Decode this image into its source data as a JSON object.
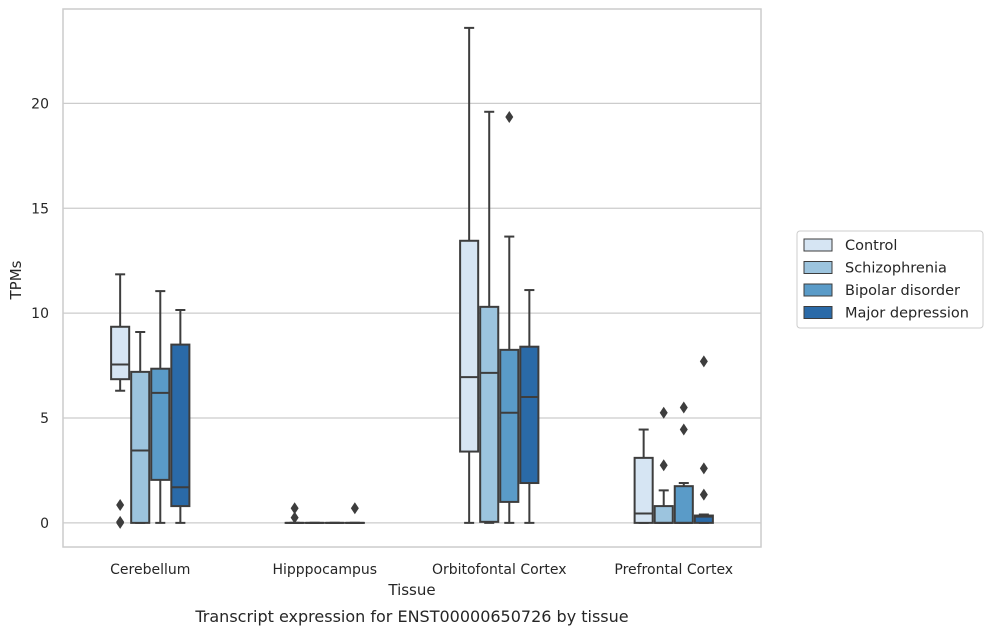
{
  "chart_data": {
    "type": "box",
    "xlabel": "Tissue",
    "ylabel": "TPMs",
    "caption": "Transcript expression for ENST00000650726 by tissue",
    "ylim": [
      -1.15,
      24.5
    ],
    "yticks": [
      0,
      5,
      10,
      15,
      20
    ],
    "grid": true,
    "legend_position": "right",
    "categories": [
      "Cerebellum",
      "Hipppocampus",
      "Orbitofontal Cortex",
      "Prefrontal Cortex"
    ],
    "series": [
      {
        "name": "Control",
        "color": "#d6e5f3",
        "boxes": [
          {
            "whislo": 6.3,
            "q1": 6.85,
            "med": 7.55,
            "q3": 9.35,
            "whishi": 11.85,
            "fliers": [
              0.85,
              0.05,
              0.0
            ]
          },
          {
            "whislo": 0,
            "q1": 0,
            "med": 0,
            "q3": 0,
            "whishi": 0,
            "fliers": [
              0.7,
              0.25
            ]
          },
          {
            "whislo": 0,
            "q1": 3.4,
            "med": 6.95,
            "q3": 13.45,
            "whishi": 23.6,
            "fliers": []
          },
          {
            "whislo": 0,
            "q1": 0,
            "med": 0.45,
            "q3": 3.1,
            "whishi": 4.45,
            "fliers": []
          }
        ]
      },
      {
        "name": "Schizophrenia",
        "color": "#9cc4de",
        "boxes": [
          {
            "whislo": 0,
            "q1": 0,
            "med": 3.45,
            "q3": 7.2,
            "whishi": 9.1,
            "fliers": []
          },
          {
            "whislo": 0,
            "q1": 0,
            "med": 0,
            "q3": 0,
            "whishi": 0,
            "fliers": []
          },
          {
            "whislo": 0,
            "q1": 0.05,
            "med": 7.15,
            "q3": 10.3,
            "whishi": 19.6,
            "fliers": []
          },
          {
            "whislo": 0,
            "q1": 0,
            "med": 0,
            "q3": 0.8,
            "whishi": 1.55,
            "fliers": [
              2.75,
              5.25
            ]
          }
        ]
      },
      {
        "name": "Bipolar disorder",
        "color": "#5a9bc8",
        "boxes": [
          {
            "whislo": 0,
            "q1": 2.05,
            "med": 6.2,
            "q3": 7.35,
            "whishi": 11.05,
            "fliers": []
          },
          {
            "whislo": 0,
            "q1": 0,
            "med": 0,
            "q3": 0,
            "whishi": 0,
            "fliers": []
          },
          {
            "whislo": 0,
            "q1": 1.0,
            "med": 5.25,
            "q3": 8.25,
            "whishi": 13.65,
            "fliers": [
              19.35
            ]
          },
          {
            "whislo": 0,
            "q1": 0,
            "med": 0,
            "q3": 1.75,
            "whishi": 1.9,
            "fliers": [
              4.45,
              5.5
            ]
          }
        ]
      },
      {
        "name": "Major depression",
        "color": "#2a6aa8",
        "boxes": [
          {
            "whislo": 0,
            "q1": 0.8,
            "med": 1.7,
            "q3": 8.5,
            "whishi": 10.15,
            "fliers": []
          },
          {
            "whislo": 0,
            "q1": 0,
            "med": 0,
            "q3": 0,
            "whishi": 0,
            "fliers": [
              0.7
            ]
          },
          {
            "whislo": 0,
            "q1": 1.9,
            "med": 6.0,
            "q3": 8.4,
            "whishi": 11.1,
            "fliers": []
          },
          {
            "whislo": 0,
            "q1": 0,
            "med": 0.3,
            "q3": 0.35,
            "whishi": 0.4,
            "fliers": [
              1.35,
              2.6,
              7.7
            ]
          }
        ]
      }
    ]
  }
}
